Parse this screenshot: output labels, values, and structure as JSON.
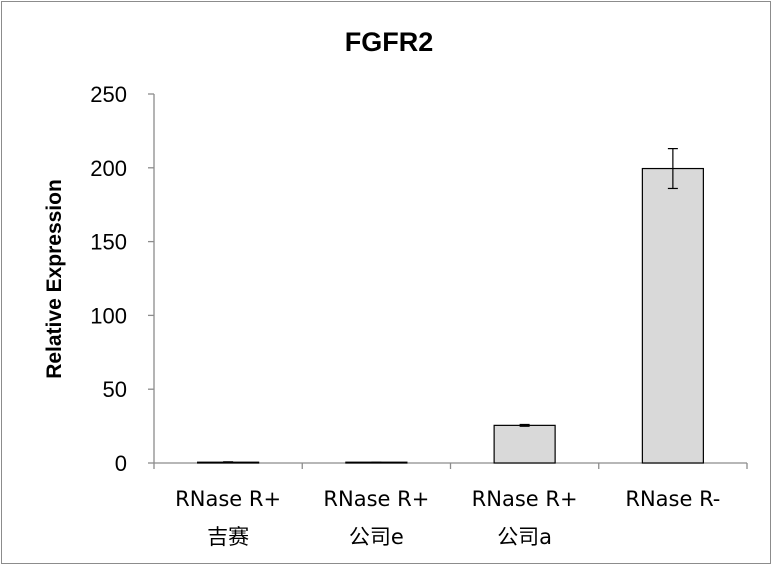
{
  "chart_data": {
    "type": "bar",
    "title": "FGFR2",
    "xlabel": "",
    "ylabel": "Relative Expression",
    "ylim": [
      0,
      250
    ],
    "yticks": [
      0,
      50,
      100,
      150,
      200,
      250
    ],
    "categories": [
      [
        "RNase R+",
        "吉赛"
      ],
      [
        "RNase R+",
        "公司e"
      ],
      [
        "RNase R+",
        "公司a"
      ],
      [
        "RNase R-",
        ""
      ]
    ],
    "values": [
      0.5,
      0.3,
      25.5,
      199.5
    ],
    "errors": [
      0.3,
      0.2,
      0.6,
      13.5
    ],
    "bar_color": "#d9d9d9",
    "bar_stroke": "#000000",
    "grid": false,
    "legend": "none"
  }
}
